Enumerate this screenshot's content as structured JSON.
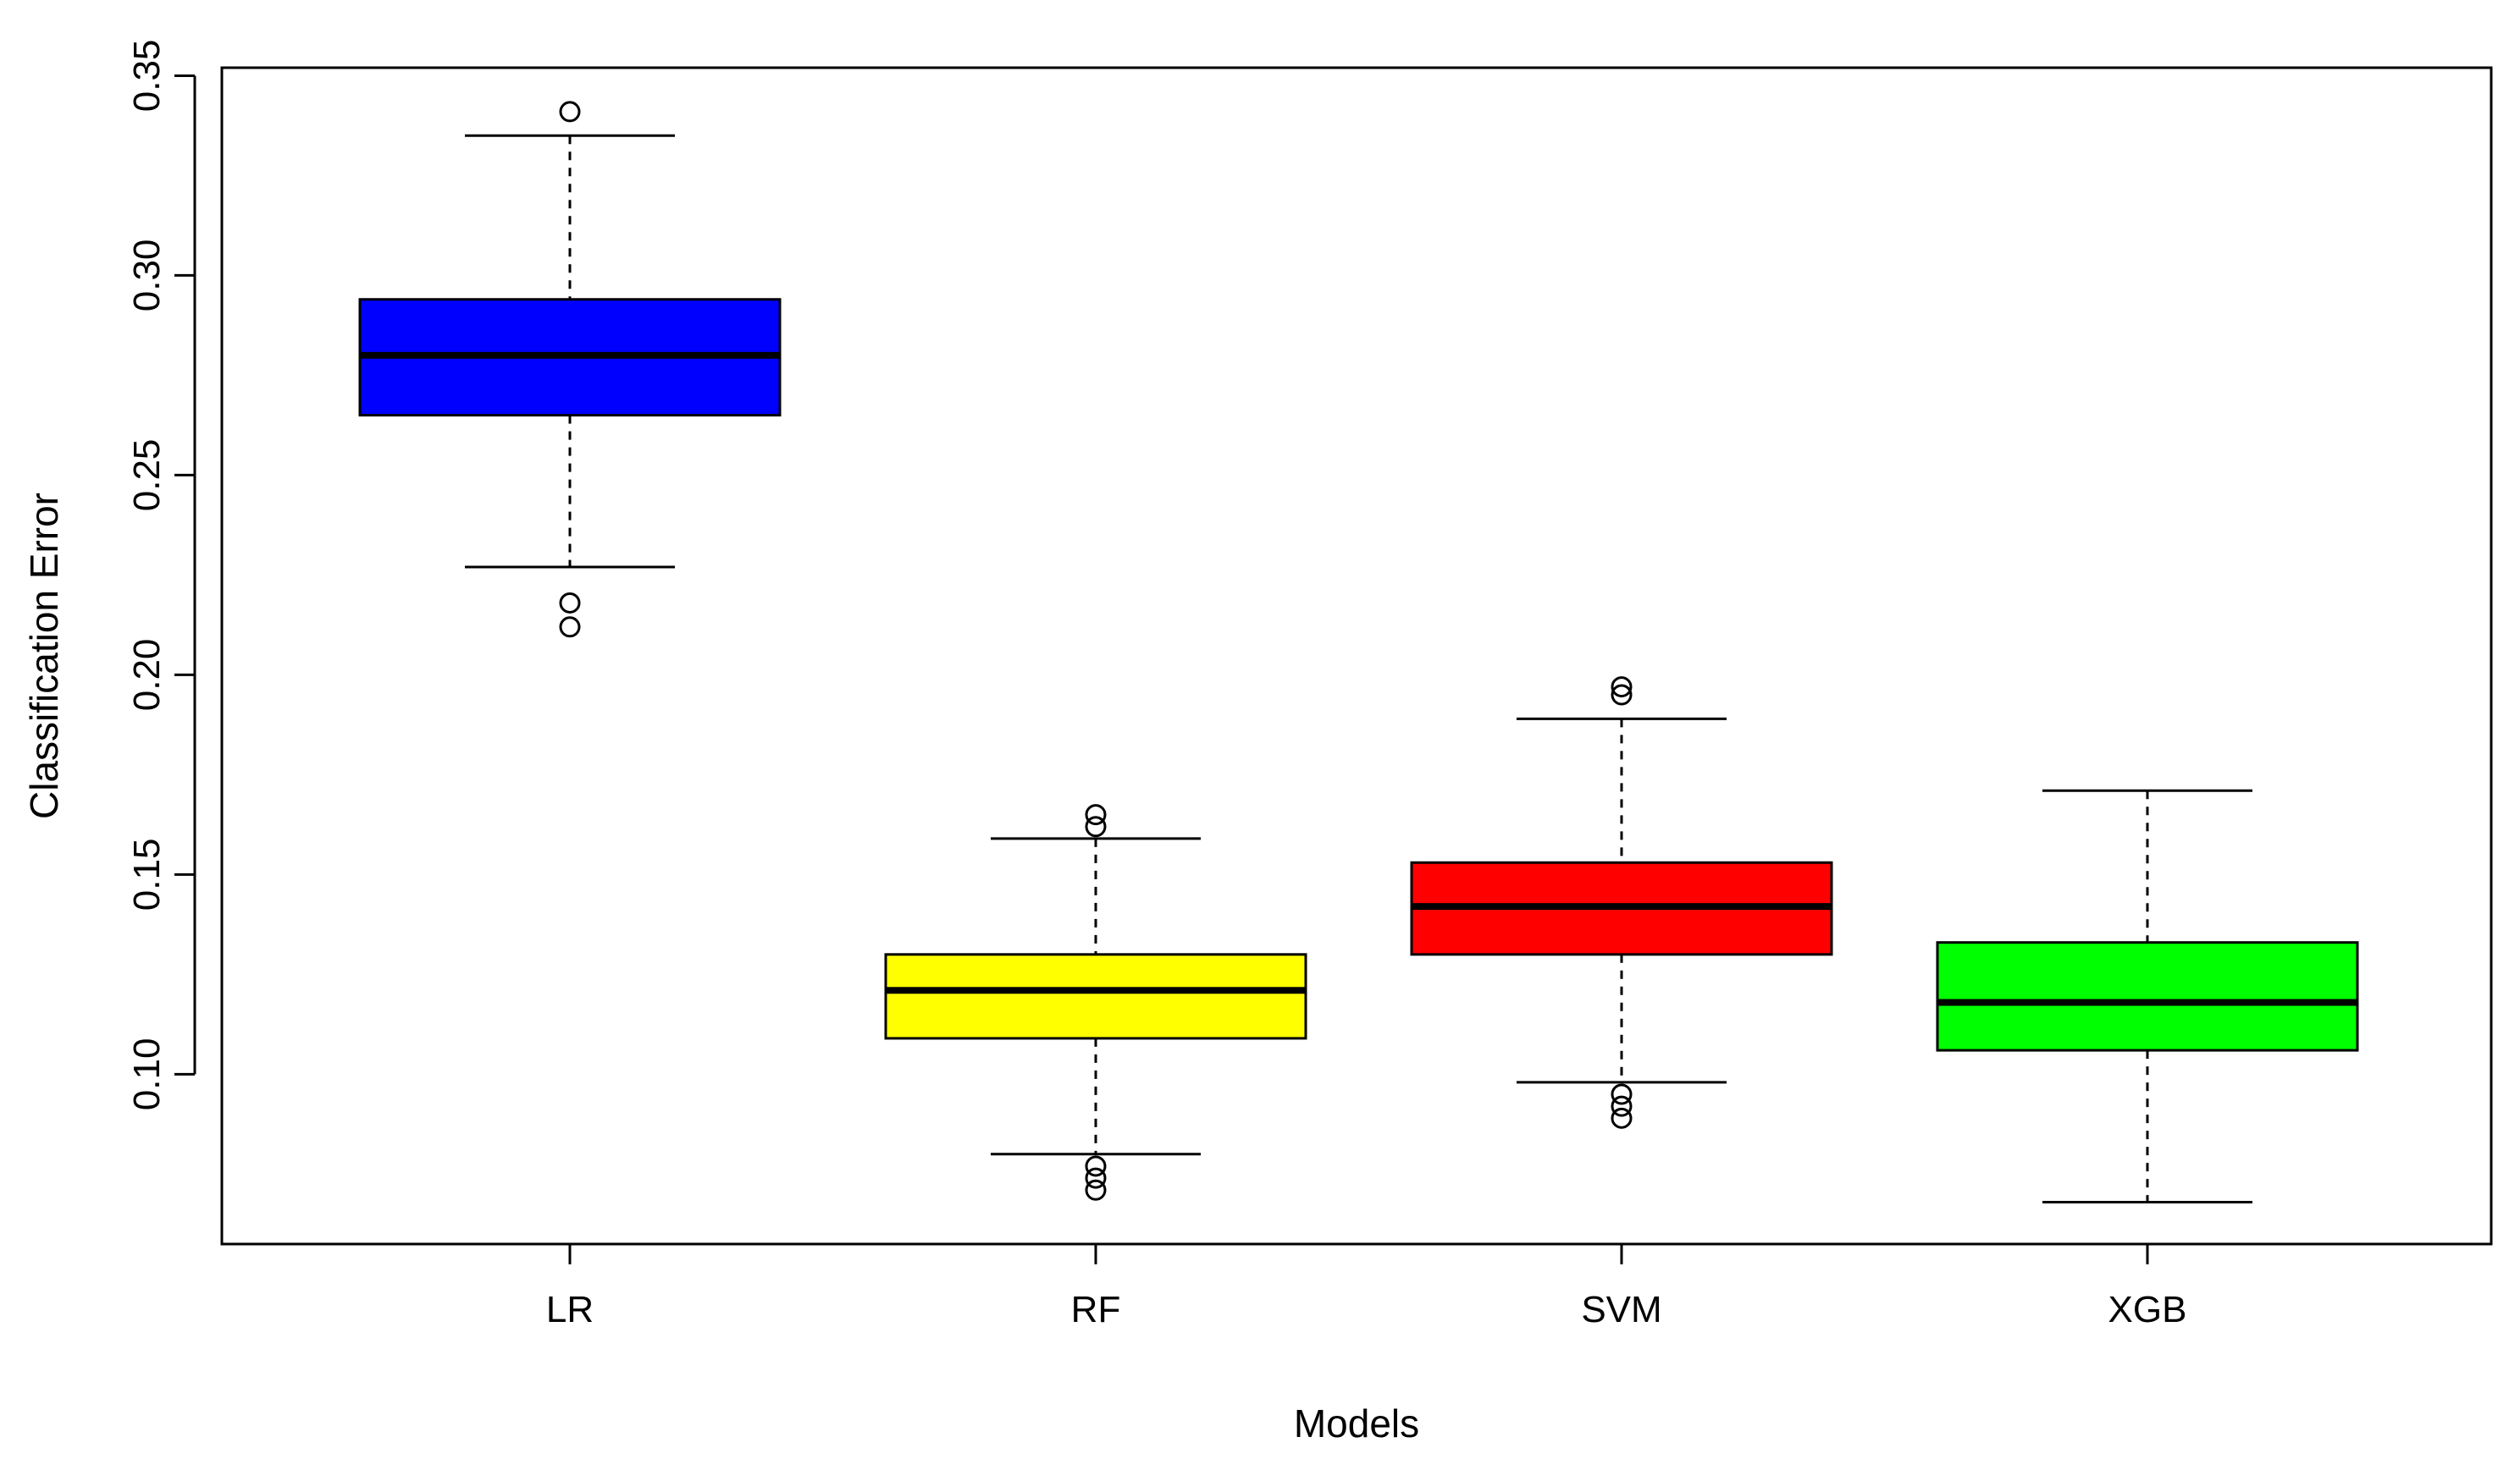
{
  "chart_data": {
    "type": "boxplot",
    "xlabel": "Models",
    "ylabel": "Classification Error",
    "ylim": [
      0.0575,
      0.352
    ],
    "yticks": [
      0.1,
      0.15,
      0.2,
      0.25,
      0.3,
      0.35
    ],
    "ytick_labels": [
      "0.10",
      "0.15",
      "0.20",
      "0.25",
      "0.30",
      "0.35"
    ],
    "categories": [
      "LR",
      "RF",
      "SVM",
      "XGB"
    ],
    "boxes": [
      {
        "name": "LR",
        "color": "#0000ff",
        "whisker_low": 0.227,
        "q1": 0.265,
        "median": 0.28,
        "q3": 0.294,
        "whisker_high": 0.335,
        "outliers": [
          0.212,
          0.218,
          0.341
        ]
      },
      {
        "name": "RF",
        "color": "#ffff00",
        "whisker_low": 0.08,
        "q1": 0.109,
        "median": 0.121,
        "q3": 0.13,
        "whisker_high": 0.159,
        "outliers": [
          0.071,
          0.074,
          0.077,
          0.162,
          0.165
        ]
      },
      {
        "name": "SVM",
        "color": "#ff0000",
        "whisker_low": 0.098,
        "q1": 0.13,
        "median": 0.142,
        "q3": 0.153,
        "whisker_high": 0.189,
        "outliers": [
          0.089,
          0.092,
          0.095,
          0.195,
          0.197
        ]
      },
      {
        "name": "XGB",
        "color": "#00ff00",
        "whisker_low": 0.068,
        "q1": 0.106,
        "median": 0.118,
        "q3": 0.133,
        "whisker_high": 0.171,
        "outliers": []
      }
    ]
  }
}
